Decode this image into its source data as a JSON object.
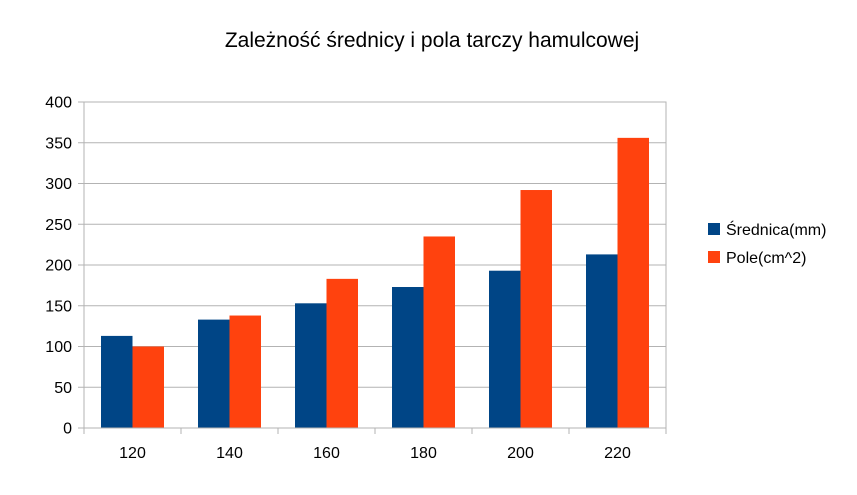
{
  "chart_data": {
    "type": "bar",
    "title": "Zależność średnicy i pola tarczy hamulcowej",
    "xlabel": "",
    "ylabel": "",
    "categories": [
      "120",
      "140",
      "160",
      "180",
      "200",
      "220"
    ],
    "series": [
      {
        "name": "Średnica(mm)",
        "values": [
          113,
          133,
          153,
          173,
          193,
          213
        ],
        "color": "#004586"
      },
      {
        "name": "Pole(cm^2)",
        "values": [
          100,
          138,
          183,
          235,
          292,
          356
        ],
        "color": "#ff420e"
      }
    ],
    "ylim": [
      0,
      400
    ],
    "yticks": [
      0,
      50,
      100,
      150,
      200,
      250,
      300,
      350,
      400
    ],
    "grid": true,
    "legend_position": "right"
  }
}
